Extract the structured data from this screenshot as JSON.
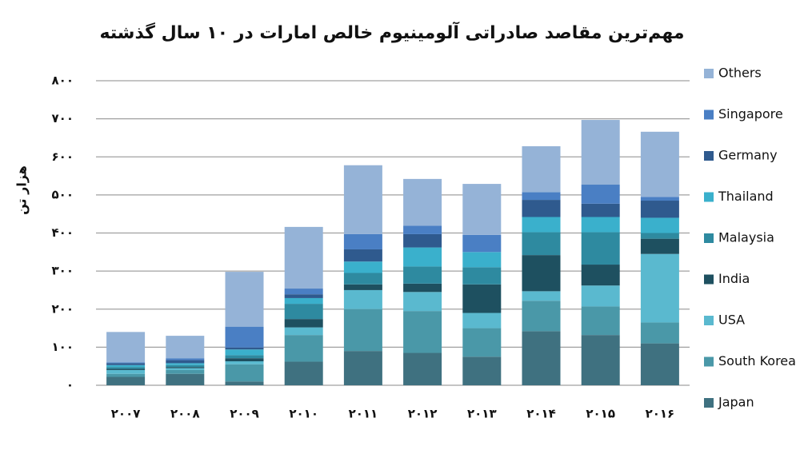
{
  "chart_data": {
    "type": "stacked_bar",
    "title": "مهم‌ترین مقاصد صادراتی آلومینیوم خالص امارات در ۱۰ سال گذشته",
    "y_label": "هزار تن",
    "categories": [
      "۲۰۰۷",
      "۲۰۰۸",
      "۲۰۰۹",
      "۲۰۱۰",
      "۲۰۱۱",
      "۲۰۱۲",
      "۲۰۱۳",
      "۲۰۱۴",
      "۲۰۱۵",
      "۲۰۱۶"
    ],
    "ylim": [
      0,
      800
    ],
    "yticks": [
      {
        "value": 0,
        "label": "۰"
      },
      {
        "value": 100,
        "label": "۱۰۰"
      },
      {
        "value": 200,
        "label": "۲۰۰"
      },
      {
        "value": 300,
        "label": "۳۰۰"
      },
      {
        "value": 400,
        "label": "۴۰۰"
      },
      {
        "value": 500,
        "label": "۵۰۰"
      },
      {
        "value": 600,
        "label": "۶۰۰"
      },
      {
        "value": 700,
        "label": "۷۰۰"
      },
      {
        "value": 800,
        "label": "۸۰۰"
      }
    ],
    "grid": true,
    "legend": "right",
    "series": [
      {
        "name": "Japan",
        "color": "#3f7180",
        "values": [
          22,
          30,
          10,
          62,
          90,
          85,
          75,
          142,
          132,
          110
        ]
      },
      {
        "name": "South Korea",
        "color": "#4a98a8",
        "values": [
          8,
          10,
          45,
          70,
          110,
          110,
          75,
          80,
          75,
          55
        ]
      },
      {
        "name": "USA",
        "color": "#5ab9cf",
        "values": [
          10,
          5,
          8,
          20,
          50,
          50,
          40,
          25,
          55,
          180
        ]
      },
      {
        "name": "India",
        "color": "#1e5060",
        "values": [
          3,
          3,
          8,
          22,
          15,
          22,
          75,
          95,
          55,
          40
        ]
      },
      {
        "name": "Malaysia",
        "color": "#2e8aa0",
        "values": [
          5,
          5,
          8,
          40,
          30,
          45,
          45,
          60,
          85,
          15
        ]
      },
      {
        "name": "Thailand",
        "color": "#3ab0cc",
        "values": [
          5,
          5,
          15,
          15,
          30,
          50,
          40,
          40,
          40,
          40
        ]
      },
      {
        "name": "Germany",
        "color": "#2f5a8e",
        "values": [
          5,
          8,
          5,
          10,
          32,
          35,
          0,
          45,
          35,
          45
        ]
      },
      {
        "name": "Singapore",
        "color": "#4a7fc4",
        "values": [
          2,
          5,
          55,
          15,
          40,
          22,
          45,
          20,
          50,
          10
        ]
      },
      {
        "name": "Others",
        "color": "#95b3d7",
        "values": [
          80,
          59,
          144,
          162,
          181,
          123,
          134,
          121,
          170,
          171
        ]
      }
    ]
  }
}
